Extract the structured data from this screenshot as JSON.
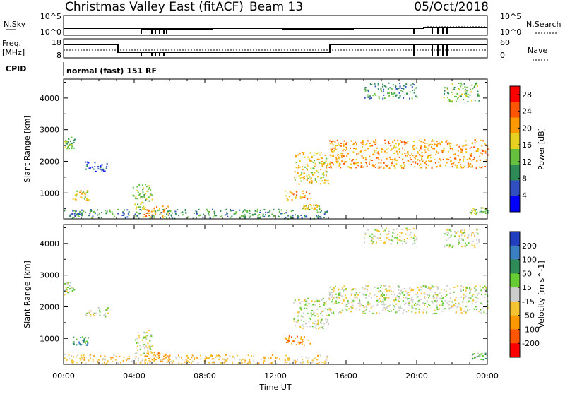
{
  "header": {
    "station_title": "Christmas Valley East (fitACF)",
    "beam_label": "Beam 13",
    "date": "05/Oct/2018"
  },
  "info_panels": {
    "nsky_label": "N.Sky",
    "nsearch_label": "N.Search",
    "freq_label_line1": "Freq.",
    "freq_label_line2": "[MHz]",
    "nave_label": "Nave",
    "cpid_label": "CPID",
    "cpid_text": "normal (fast) 151 RF",
    "noise_ticks_left": [
      "10^5",
      "10^0"
    ],
    "noise_ticks_right": [
      "10^5",
      "10^0"
    ],
    "freq_ticks": [
      "18",
      "8"
    ],
    "nave_ticks": [
      "60",
      "0"
    ]
  },
  "chart_data": [
    {
      "type": "heatmap",
      "name": "power",
      "xlabel": "",
      "ylabel": "Slant Range [km]",
      "x_ticks": [
        "00:00",
        "04:00",
        "08:00",
        "12:00",
        "16:00",
        "20:00",
        "00:00"
      ],
      "y_ticks": [
        1000,
        2000,
        3000,
        4000
      ],
      "ylim": [
        180,
        4600
      ],
      "colorbar": {
        "label": "Power [dB]",
        "ticks": [
          4,
          8,
          12,
          16,
          20,
          24,
          28
        ],
        "range": [
          0,
          30
        ],
        "colors": [
          "#0000ff",
          "#3050c0",
          "#2e8b57",
          "#66c040",
          "#e8d020",
          "#ff9900",
          "#ff5500",
          "#ff0000"
        ]
      },
      "patches": [
        {
          "t": [
            0.0,
            0.6
          ],
          "r": [
            2400,
            2800
          ],
          "c": 3
        },
        {
          "t": [
            0.5,
            1.4
          ],
          "r": [
            800,
            1100
          ],
          "c": 4
        },
        {
          "t": [
            1.2,
            2.5
          ],
          "r": [
            1700,
            2000
          ],
          "c": 1
        },
        {
          "t": [
            0.0,
            15.0
          ],
          "r": [
            200,
            500
          ],
          "c": 2
        },
        {
          "t": [
            3.9,
            5.0
          ],
          "r": [
            500,
            1300
          ],
          "c": 3
        },
        {
          "t": [
            4.5,
            6.0
          ],
          "r": [
            250,
            600
          ],
          "c": 5
        },
        {
          "t": [
            12.5,
            14.0
          ],
          "r": [
            800,
            1100
          ],
          "c": 5
        },
        {
          "t": [
            13.5,
            14.5
          ],
          "r": [
            500,
            650
          ],
          "c": 4
        },
        {
          "t": [
            13.0,
            15.0
          ],
          "r": [
            1300,
            2300
          ],
          "c": 4
        },
        {
          "t": [
            15.0,
            24.0
          ],
          "r": [
            1800,
            2700
          ],
          "c": 5
        },
        {
          "t": [
            17.0,
            20.0
          ],
          "r": [
            4000,
            4500
          ],
          "c": 2
        },
        {
          "t": [
            21.5,
            23.5
          ],
          "r": [
            3900,
            4500
          ],
          "c": 3
        },
        {
          "t": [
            23.0,
            24.0
          ],
          "r": [
            350,
            550
          ],
          "c": 3
        }
      ]
    },
    {
      "type": "heatmap",
      "name": "velocity",
      "xlabel": "Time UT",
      "ylabel": "Slant Range [km]",
      "x_ticks": [
        "00:00",
        "04:00",
        "08:00",
        "12:00",
        "16:00",
        "20:00",
        "00:00"
      ],
      "y_ticks": [
        1000,
        2000,
        3000,
        4000
      ],
      "ylim": [
        180,
        4600
      ],
      "colorbar": {
        "label": "Velocity [m s^-1]",
        "ticks": [
          200,
          100,
          50,
          15,
          -15,
          -50,
          -100,
          -200
        ],
        "range": [
          -250,
          250
        ],
        "colors": [
          "#1f3fbf",
          "#3a80c0",
          "#2e8b57",
          "#66cc33",
          "#cccccc",
          "#f5c430",
          "#ff9900",
          "#ff5500",
          "#ff0000"
        ]
      },
      "patches": [
        {
          "t": [
            0.0,
            0.6
          ],
          "r": [
            2400,
            2800
          ],
          "c": 4
        },
        {
          "t": [
            0.5,
            1.4
          ],
          "r": [
            800,
            1100
          ],
          "c": 2
        },
        {
          "t": [
            1.2,
            2.5
          ],
          "r": [
            1700,
            2000
          ],
          "c": 4
        },
        {
          "t": [
            0.0,
            15.0
          ],
          "r": [
            200,
            500
          ],
          "c": 5
        },
        {
          "t": [
            3.9,
            5.0
          ],
          "r": [
            500,
            1300
          ],
          "c": 4
        },
        {
          "t": [
            4.5,
            6.0
          ],
          "r": [
            250,
            600
          ],
          "c": 6
        },
        {
          "t": [
            12.5,
            14.0
          ],
          "r": [
            800,
            1100
          ],
          "c": 6
        },
        {
          "t": [
            13.0,
            15.0
          ],
          "r": [
            1300,
            2300
          ],
          "c": 4
        },
        {
          "t": [
            15.0,
            24.0
          ],
          "r": [
            1800,
            2700
          ],
          "c": 4
        },
        {
          "t": [
            17.0,
            20.0
          ],
          "r": [
            4000,
            4500
          ],
          "c": 4
        },
        {
          "t": [
            21.5,
            23.5
          ],
          "r": [
            3900,
            4500
          ],
          "c": 4
        },
        {
          "t": [
            23.0,
            24.0
          ],
          "r": [
            350,
            550
          ],
          "c": 3
        }
      ]
    }
  ],
  "x_axis_label": "Time UT"
}
